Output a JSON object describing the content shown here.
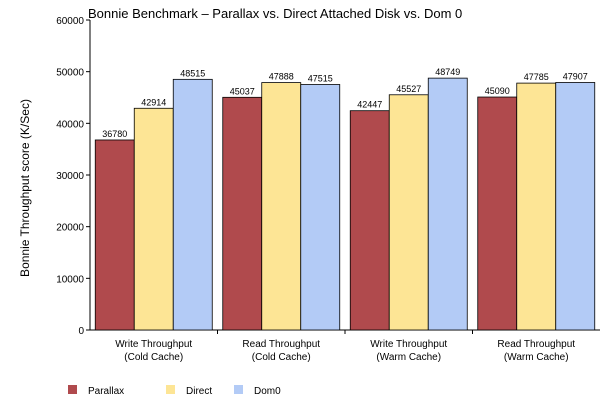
{
  "chart_data": {
    "type": "bar",
    "title": "Bonnie Benchmark – Parallax vs. Direct Attached Disk vs. Dom 0",
    "ylabel": "Bonnie Throughput score (K/Sec)",
    "xlabel": "",
    "ylim": [
      0,
      60000
    ],
    "yticks": [
      0,
      10000,
      20000,
      30000,
      40000,
      50000,
      60000
    ],
    "categories": [
      [
        "Write Throughput",
        "(Cold Cache)"
      ],
      [
        "Read Throughput",
        "(Cold Cache)"
      ],
      [
        "Write Throughput",
        "(Warm Cache)"
      ],
      [
        "Read Throughput",
        "(Warm Cache)"
      ]
    ],
    "series": [
      {
        "name": "Parallax",
        "color": "#b04a4d",
        "values": [
          36780,
          45037,
          42447,
          45090
        ]
      },
      {
        "name": "Direct",
        "color": "#fde595",
        "values": [
          42914,
          47888,
          45527,
          47785
        ]
      },
      {
        "name": "Dom0",
        "color": "#b3cbf6",
        "values": [
          48515,
          47515,
          48749,
          47907
        ]
      }
    ],
    "grid": false,
    "legend_position": "bottom-left"
  }
}
